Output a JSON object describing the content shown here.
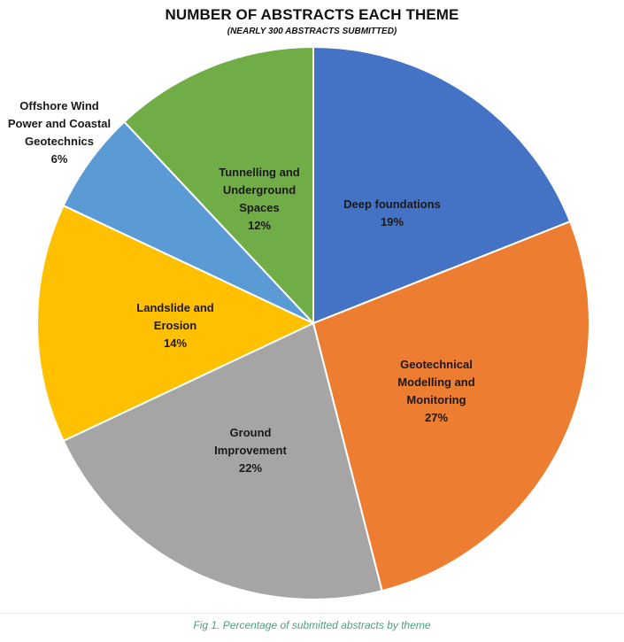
{
  "chart_data": {
    "type": "pie",
    "title": "NUMBER OF ABSTRACTS EACH THEME",
    "subtitle": "(NEARLY 300 ABSTRACTS SUBMITTED)",
    "slices": [
      {
        "label_lines": [
          "Deep foundations"
        ],
        "value": 19,
        "value_label": "19%",
        "color": "#4472c4"
      },
      {
        "label_lines": [
          "Geotechnical",
          "Modelling and",
          "Monitoring"
        ],
        "value": 27,
        "value_label": "27%",
        "color": "#ed7d31"
      },
      {
        "label_lines": [
          "Ground",
          "Improvement"
        ],
        "value": 22,
        "value_label": "22%",
        "color": "#a5a5a5"
      },
      {
        "label_lines": [
          "Landslide and",
          "Erosion"
        ],
        "value": 14,
        "value_label": "14%",
        "color": "#ffc000"
      },
      {
        "label_lines": [
          "Offshore Wind",
          "Power and Coastal",
          "Geotechnics"
        ],
        "value": 6,
        "value_label": "6%",
        "color": "#5b9bd5",
        "label_outside": true
      },
      {
        "label_lines": [
          "Tunnelling and",
          "Underground",
          "Spaces"
        ],
        "value": 12,
        "value_label": "12%",
        "color": "#70ad47"
      }
    ]
  },
  "caption": "Fig 1. Percentage of submitted abstracts by theme"
}
